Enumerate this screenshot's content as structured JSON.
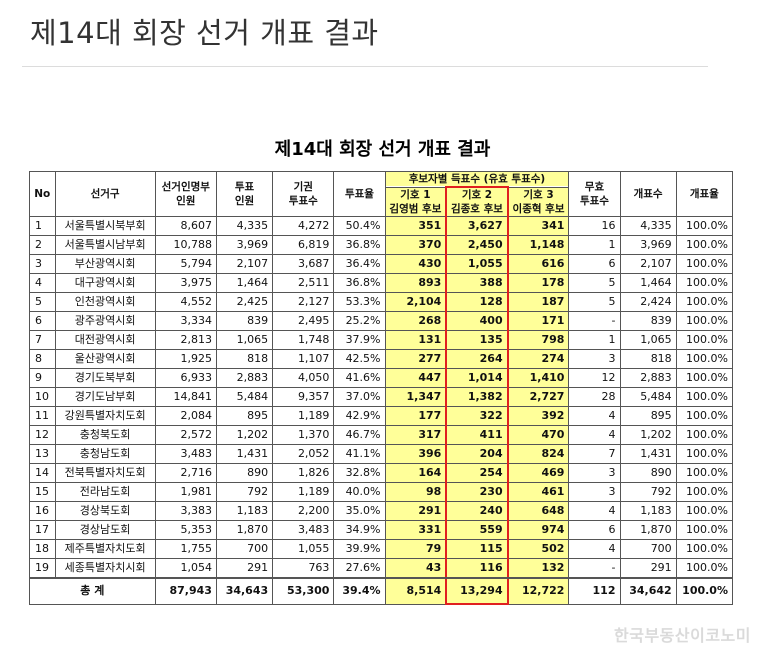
{
  "page_title": "제14대 회장 선거 개표 결과",
  "table_title": "제14대 회장 선거 개표 결과",
  "headers": {
    "no": "No",
    "district": "선거구",
    "roster": [
      "선거인명부",
      "인원"
    ],
    "votes": [
      "투표",
      "인원"
    ],
    "abstain": [
      "기권",
      "투표수"
    ],
    "turnout": "투표율",
    "candidate_group": "후보자별 득표수 (유효 투표수)",
    "candidates": [
      {
        "number": "기호 1",
        "name": "김영범 후보"
      },
      {
        "number": "기호 2",
        "name": "김종호 후보"
      },
      {
        "number": "기호 3",
        "name": "이종혁 후보"
      }
    ],
    "invalid": [
      "무효",
      "투표수"
    ],
    "counted": "개표수",
    "count_rate": "개표율"
  },
  "rows": [
    {
      "no": "1",
      "district": "서울특별시북부회",
      "roster": "8,607",
      "votes": "4,335",
      "abstain": "4,272",
      "turnout": "50.4%",
      "c1": "351",
      "c2": "3,627",
      "c3": "341",
      "invalid": "16",
      "counted": "4,335",
      "rate": "100.0%"
    },
    {
      "no": "2",
      "district": "서울특별시남부회",
      "roster": "10,788",
      "votes": "3,969",
      "abstain": "6,819",
      "turnout": "36.8%",
      "c1": "370",
      "c2": "2,450",
      "c3": "1,148",
      "invalid": "1",
      "counted": "3,969",
      "rate": "100.0%"
    },
    {
      "no": "3",
      "district": "부산광역시회",
      "roster": "5,794",
      "votes": "2,107",
      "abstain": "3,687",
      "turnout": "36.4%",
      "c1": "430",
      "c2": "1,055",
      "c3": "616",
      "invalid": "6",
      "counted": "2,107",
      "rate": "100.0%"
    },
    {
      "no": "4",
      "district": "대구광역시회",
      "roster": "3,975",
      "votes": "1,464",
      "abstain": "2,511",
      "turnout": "36.8%",
      "c1": "893",
      "c2": "388",
      "c3": "178",
      "invalid": "5",
      "counted": "1,464",
      "rate": "100.0%"
    },
    {
      "no": "5",
      "district": "인천광역시회",
      "roster": "4,552",
      "votes": "2,425",
      "abstain": "2,127",
      "turnout": "53.3%",
      "c1": "2,104",
      "c2": "128",
      "c3": "187",
      "invalid": "5",
      "counted": "2,424",
      "rate": "100.0%"
    },
    {
      "no": "6",
      "district": "광주광역시회",
      "roster": "3,334",
      "votes": "839",
      "abstain": "2,495",
      "turnout": "25.2%",
      "c1": "268",
      "c2": "400",
      "c3": "171",
      "invalid": "-",
      "counted": "839",
      "rate": "100.0%"
    },
    {
      "no": "7",
      "district": "대전광역시회",
      "roster": "2,813",
      "votes": "1,065",
      "abstain": "1,748",
      "turnout": "37.9%",
      "c1": "131",
      "c2": "135",
      "c3": "798",
      "invalid": "1",
      "counted": "1,065",
      "rate": "100.0%"
    },
    {
      "no": "8",
      "district": "울산광역시회",
      "roster": "1,925",
      "votes": "818",
      "abstain": "1,107",
      "turnout": "42.5%",
      "c1": "277",
      "c2": "264",
      "c3": "274",
      "invalid": "3",
      "counted": "818",
      "rate": "100.0%"
    },
    {
      "no": "9",
      "district": "경기도북부회",
      "roster": "6,933",
      "votes": "2,883",
      "abstain": "4,050",
      "turnout": "41.6%",
      "c1": "447",
      "c2": "1,014",
      "c3": "1,410",
      "invalid": "12",
      "counted": "2,883",
      "rate": "100.0%"
    },
    {
      "no": "10",
      "district": "경기도남부회",
      "roster": "14,841",
      "votes": "5,484",
      "abstain": "9,357",
      "turnout": "37.0%",
      "c1": "1,347",
      "c2": "1,382",
      "c3": "2,727",
      "invalid": "28",
      "counted": "5,484",
      "rate": "100.0%"
    },
    {
      "no": "11",
      "district": "강원특별자치도회",
      "roster": "2,084",
      "votes": "895",
      "abstain": "1,189",
      "turnout": "42.9%",
      "c1": "177",
      "c2": "322",
      "c3": "392",
      "invalid": "4",
      "counted": "895",
      "rate": "100.0%"
    },
    {
      "no": "12",
      "district": "충청북도회",
      "roster": "2,572",
      "votes": "1,202",
      "abstain": "1,370",
      "turnout": "46.7%",
      "c1": "317",
      "c2": "411",
      "c3": "470",
      "invalid": "4",
      "counted": "1,202",
      "rate": "100.0%"
    },
    {
      "no": "13",
      "district": "충청남도회",
      "roster": "3,483",
      "votes": "1,431",
      "abstain": "2,052",
      "turnout": "41.1%",
      "c1": "396",
      "c2": "204",
      "c3": "824",
      "invalid": "7",
      "counted": "1,431",
      "rate": "100.0%"
    },
    {
      "no": "14",
      "district": "전북특별자치도회",
      "roster": "2,716",
      "votes": "890",
      "abstain": "1,826",
      "turnout": "32.8%",
      "c1": "164",
      "c2": "254",
      "c3": "469",
      "invalid": "3",
      "counted": "890",
      "rate": "100.0%"
    },
    {
      "no": "15",
      "district": "전라남도회",
      "roster": "1,981",
      "votes": "792",
      "abstain": "1,189",
      "turnout": "40.0%",
      "c1": "98",
      "c2": "230",
      "c3": "461",
      "invalid": "3",
      "counted": "792",
      "rate": "100.0%"
    },
    {
      "no": "16",
      "district": "경상북도회",
      "roster": "3,383",
      "votes": "1,183",
      "abstain": "2,200",
      "turnout": "35.0%",
      "c1": "291",
      "c2": "240",
      "c3": "648",
      "invalid": "4",
      "counted": "1,183",
      "rate": "100.0%"
    },
    {
      "no": "17",
      "district": "경상남도회",
      "roster": "5,353",
      "votes": "1,870",
      "abstain": "3,483",
      "turnout": "34.9%",
      "c1": "331",
      "c2": "559",
      "c3": "974",
      "invalid": "6",
      "counted": "1,870",
      "rate": "100.0%"
    },
    {
      "no": "18",
      "district": "제주특별자치도회",
      "roster": "1,755",
      "votes": "700",
      "abstain": "1,055",
      "turnout": "39.9%",
      "c1": "79",
      "c2": "115",
      "c3": "502",
      "invalid": "4",
      "counted": "700",
      "rate": "100.0%"
    },
    {
      "no": "19",
      "district": "세종특별자치시회",
      "roster": "1,054",
      "votes": "291",
      "abstain": "763",
      "turnout": "27.6%",
      "c1": "43",
      "c2": "116",
      "c3": "132",
      "invalid": "-",
      "counted": "291",
      "rate": "100.0%"
    }
  ],
  "total": {
    "label": "총 계",
    "roster": "87,943",
    "votes": "34,643",
    "abstain": "53,300",
    "turnout": "39.4%",
    "c1": "8,514",
    "c2": "13,294",
    "c3": "12,722",
    "invalid": "112",
    "counted": "34,642",
    "rate": "100.0%"
  },
  "highlight_color": "#e02020",
  "candidate_fill": "#ffff99",
  "watermark": "한국부동산이코노미"
}
